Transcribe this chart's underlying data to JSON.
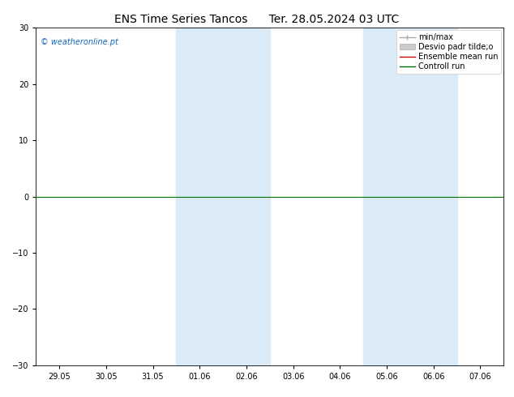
{
  "title_left": "ENS Time Series Tancos",
  "title_right": "Ter. 28.05.2024 03 UTC",
  "ylim": [
    -30,
    30
  ],
  "yticks": [
    -30,
    -20,
    -10,
    0,
    10,
    20,
    30
  ],
  "x_labels": [
    "29.05",
    "30.05",
    "31.05",
    "01.06",
    "02.06",
    "03.06",
    "04.06",
    "05.06",
    "06.06",
    "07.06"
  ],
  "shaded_regions": [
    {
      "xstart": 3.0,
      "xend": 5.0,
      "color": "#daeaf7"
    },
    {
      "xstart": 7.0,
      "xend": 9.0,
      "color": "#daeaf7"
    }
  ],
  "watermark": "© weatheronline.pt",
  "watermark_color": "#1565c0",
  "legend_labels": [
    "min/max",
    "Desvio padr tilde;o",
    "Ensemble mean run",
    "Controll run"
  ],
  "legend_colors": [
    "#aaaaaa",
    "#cccccc",
    "#cc0000",
    "#007000"
  ],
  "background_color": "#ffffff",
  "title_fontsize": 10,
  "tick_fontsize": 7,
  "watermark_fontsize": 7,
  "legend_fontsize": 7
}
